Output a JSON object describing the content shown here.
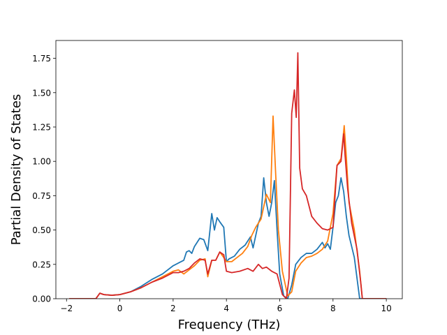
{
  "chart_data": {
    "type": "line",
    "title": "",
    "xlabel": "Frequency (THz)",
    "ylabel": "Partial Density of States",
    "xlim": [
      -2.4,
      10.6
    ],
    "ylim": [
      0.0,
      1.88
    ],
    "xticks": [
      -2,
      0,
      2,
      4,
      6,
      8,
      10
    ],
    "xtick_labels": [
      "−2",
      "0",
      "2",
      "4",
      "6",
      "8",
      "10"
    ],
    "yticks": [
      0.0,
      0.25,
      0.5,
      0.75,
      1.0,
      1.25,
      1.5,
      1.75
    ],
    "ytick_labels": [
      "0.00",
      "0.25",
      "0.50",
      "0.75",
      "1.00",
      "1.25",
      "1.50",
      "1.75"
    ],
    "grid": false,
    "legend": null,
    "series": [
      {
        "color": "#1f77b4",
        "x": [
          -1.9,
          -0.9,
          -0.75,
          -0.6,
          -0.3,
          0.0,
          0.4,
          0.8,
          1.2,
          1.6,
          2.0,
          2.2,
          2.4,
          2.5,
          2.6,
          2.7,
          2.8,
          3.0,
          3.15,
          3.3,
          3.45,
          3.55,
          3.65,
          3.75,
          3.9,
          4.0,
          4.1,
          4.3,
          4.5,
          4.7,
          4.9,
          5.0,
          5.2,
          5.3,
          5.4,
          5.5,
          5.6,
          5.7,
          5.8,
          5.9,
          6.0,
          6.15,
          6.3,
          6.45,
          6.6,
          6.8,
          7.0,
          7.2,
          7.4,
          7.6,
          7.7,
          7.8,
          7.9,
          8.0,
          8.1,
          8.2,
          8.3,
          8.4,
          8.5,
          8.6,
          8.8,
          9.0,
          9.1,
          10.0
        ],
        "y": [
          0.0,
          0.0,
          0.04,
          0.03,
          0.025,
          0.03,
          0.05,
          0.09,
          0.14,
          0.18,
          0.24,
          0.26,
          0.28,
          0.34,
          0.35,
          0.33,
          0.38,
          0.44,
          0.43,
          0.35,
          0.62,
          0.5,
          0.59,
          0.56,
          0.52,
          0.27,
          0.29,
          0.31,
          0.36,
          0.39,
          0.45,
          0.37,
          0.55,
          0.6,
          0.88,
          0.7,
          0.6,
          0.7,
          0.86,
          0.5,
          0.18,
          0.02,
          0.0,
          0.1,
          0.25,
          0.3,
          0.33,
          0.33,
          0.36,
          0.41,
          0.37,
          0.4,
          0.36,
          0.52,
          0.7,
          0.75,
          0.88,
          0.78,
          0.6,
          0.46,
          0.3,
          0.0,
          0.0,
          0.0
        ]
      },
      {
        "color": "#ff7f0e",
        "x": [
          -1.9,
          -0.9,
          -0.75,
          -0.6,
          -0.3,
          0.0,
          0.4,
          0.8,
          1.2,
          1.6,
          2.0,
          2.2,
          2.4,
          2.6,
          2.8,
          3.0,
          3.2,
          3.3,
          3.45,
          3.6,
          3.75,
          3.9,
          4.0,
          4.2,
          4.4,
          4.6,
          4.8,
          4.95,
          5.1,
          5.3,
          5.5,
          5.65,
          5.75,
          5.85,
          5.95,
          6.1,
          6.3,
          6.45,
          6.6,
          6.8,
          7.0,
          7.2,
          7.4,
          7.6,
          7.8,
          8.0,
          8.15,
          8.3,
          8.42,
          8.5,
          8.6,
          8.8,
          9.0,
          9.1,
          10.0
        ],
        "y": [
          0.0,
          0.0,
          0.04,
          0.03,
          0.025,
          0.03,
          0.05,
          0.08,
          0.12,
          0.16,
          0.2,
          0.21,
          0.18,
          0.21,
          0.24,
          0.28,
          0.29,
          0.16,
          0.28,
          0.28,
          0.34,
          0.3,
          0.27,
          0.27,
          0.3,
          0.33,
          0.38,
          0.46,
          0.52,
          0.58,
          0.76,
          0.7,
          1.33,
          0.9,
          0.5,
          0.2,
          0.02,
          0.05,
          0.2,
          0.26,
          0.3,
          0.31,
          0.33,
          0.36,
          0.42,
          0.62,
          0.97,
          1.02,
          1.26,
          1.03,
          0.7,
          0.5,
          0.2,
          0.0,
          0.0
        ]
      },
      {
        "color": "#d62728",
        "x": [
          -1.9,
          -0.9,
          -0.75,
          -0.6,
          -0.3,
          0.0,
          0.4,
          0.8,
          1.2,
          1.6,
          2.0,
          2.2,
          2.4,
          2.6,
          2.8,
          3.0,
          3.2,
          3.3,
          3.45,
          3.6,
          3.75,
          3.9,
          4.0,
          4.2,
          4.5,
          4.8,
          5.0,
          5.2,
          5.35,
          5.5,
          5.7,
          5.9,
          6.1,
          6.25,
          6.35,
          6.45,
          6.55,
          6.62,
          6.68,
          6.75,
          6.85,
          7.0,
          7.2,
          7.4,
          7.6,
          7.8,
          8.0,
          8.15,
          8.3,
          8.4,
          8.45,
          8.55,
          8.7,
          8.9,
          9.05,
          9.1,
          10.0
        ],
        "y": [
          0.0,
          0.0,
          0.04,
          0.03,
          0.025,
          0.03,
          0.05,
          0.08,
          0.12,
          0.15,
          0.19,
          0.19,
          0.2,
          0.22,
          0.26,
          0.29,
          0.28,
          0.18,
          0.28,
          0.28,
          0.34,
          0.32,
          0.2,
          0.19,
          0.2,
          0.22,
          0.2,
          0.25,
          0.22,
          0.23,
          0.2,
          0.18,
          0.03,
          0.0,
          0.15,
          1.35,
          1.52,
          1.32,
          1.79,
          0.95,
          0.8,
          0.75,
          0.6,
          0.55,
          0.51,
          0.5,
          0.52,
          0.97,
          1.0,
          1.2,
          1.05,
          0.8,
          0.55,
          0.36,
          0.1,
          0.0,
          0.0
        ]
      }
    ]
  }
}
